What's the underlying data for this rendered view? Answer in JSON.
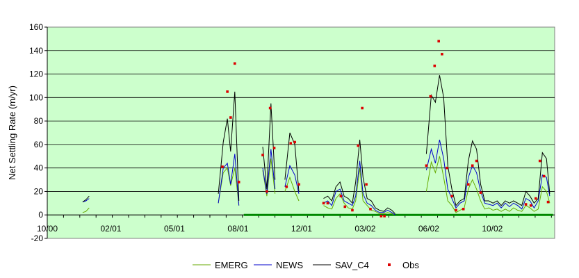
{
  "chart_data": {
    "type": "line",
    "title": "",
    "ylabel": "Net Settling Rate (m/yr)",
    "xlabel": "",
    "ylim": [
      -20,
      160
    ],
    "y_ticks": [
      -20,
      0,
      20,
      40,
      60,
      80,
      100,
      120,
      140,
      160
    ],
    "x_tick_labels": [
      "10/00",
      "02/01",
      "05/01",
      "08/01",
      "12/01",
      "03/02",
      "06/02",
      "10/02"
    ],
    "grid": "horizontal",
    "legend_position": "bottom",
    "plot_background": "#ccffcc",
    "series": [
      {
        "name": "EMERG",
        "color": "#66aa00",
        "style": "line",
        "segments": [
          [
            [
              4.3,
              2
            ],
            [
              4.7,
              3
            ],
            [
              5.1,
              6
            ]
          ],
          [
            [
              20.8,
              10
            ],
            [
              21.4,
              36
            ],
            [
              21.9,
              40
            ],
            [
              22.3,
              25
            ],
            [
              22.8,
              40
            ],
            [
              23.3,
              8
            ]
          ],
          [
            [
              26.2,
              38
            ],
            [
              26.7,
              16
            ],
            [
              27.2,
              48
            ],
            [
              27.7,
              18
            ]
          ],
          [
            [
              28.9,
              20
            ],
            [
              29.5,
              32
            ],
            [
              30.1,
              20
            ],
            [
              30.6,
              12
            ]
          ],
          [
            [
              33.6,
              8
            ],
            [
              34.1,
              6
            ],
            [
              34.6,
              5
            ],
            [
              35.1,
              14
            ],
            [
              35.6,
              18
            ],
            [
              36.1,
              10
            ],
            [
              36.6,
              6
            ],
            [
              37.1,
              5
            ],
            [
              37.5,
              12
            ],
            [
              38.0,
              40
            ],
            [
              38.4,
              12
            ],
            [
              38.9,
              8
            ],
            [
              39.4,
              4
            ],
            [
              39.9,
              3
            ],
            [
              40.4,
              1
            ],
            [
              40.9,
              1
            ],
            [
              41.4,
              2
            ],
            [
              41.9,
              1
            ],
            [
              42.3,
              0
            ]
          ],
          [
            [
              46.1,
              20
            ],
            [
              46.7,
              45
            ],
            [
              47.2,
              36
            ],
            [
              47.7,
              50
            ],
            [
              48.2,
              32
            ],
            [
              48.7,
              12
            ],
            [
              49.2,
              8
            ],
            [
              49.7,
              2
            ],
            [
              50.2,
              4
            ],
            [
              50.7,
              6
            ],
            [
              51.2,
              22
            ],
            [
              51.7,
              30
            ],
            [
              52.2,
              22
            ],
            [
              52.7,
              12
            ],
            [
              53.2,
              5
            ],
            [
              53.7,
              6
            ],
            [
              54.2,
              4
            ],
            [
              54.7,
              5
            ],
            [
              55.2,
              3
            ],
            [
              55.7,
              5
            ],
            [
              56.2,
              3
            ],
            [
              56.7,
              6
            ],
            [
              57.2,
              4
            ],
            [
              57.7,
              3
            ],
            [
              58.2,
              8
            ],
            [
              58.7,
              6
            ],
            [
              59.2,
              3
            ],
            [
              59.7,
              5
            ],
            [
              60.2,
              24
            ],
            [
              60.7,
              20
            ],
            [
              61.1,
              10
            ]
          ]
        ]
      },
      {
        "name": "NEWS",
        "color": "#0000cc",
        "style": "line",
        "segments": [
          [
            [
              4.3,
              11
            ],
            [
              4.7,
              12
            ],
            [
              5.1,
              14
            ]
          ],
          [
            [
              20.8,
              10
            ],
            [
              21.4,
              40
            ],
            [
              21.9,
              44
            ],
            [
              22.3,
              26
            ],
            [
              22.8,
              52
            ],
            [
              23.3,
              8
            ]
          ],
          [
            [
              26.2,
              40
            ],
            [
              26.7,
              18
            ],
            [
              27.2,
              56
            ],
            [
              27.7,
              22
            ]
          ],
          [
            [
              28.9,
              24
            ],
            [
              29.5,
              42
            ],
            [
              30.1,
              34
            ],
            [
              30.6,
              18
            ]
          ],
          [
            [
              33.6,
              10
            ],
            [
              34.1,
              12
            ],
            [
              34.6,
              8
            ],
            [
              35.1,
              20
            ],
            [
              35.6,
              22
            ],
            [
              36.1,
              12
            ],
            [
              36.6,
              10
            ],
            [
              37.1,
              8
            ],
            [
              37.5,
              16
            ],
            [
              38.0,
              46
            ],
            [
              38.4,
              18
            ],
            [
              38.9,
              10
            ],
            [
              39.4,
              8
            ],
            [
              39.9,
              4
            ],
            [
              40.4,
              2
            ],
            [
              40.9,
              2
            ],
            [
              41.4,
              4
            ],
            [
              41.9,
              2
            ],
            [
              42.3,
              0
            ]
          ],
          [
            [
              46.1,
              38
            ],
            [
              46.7,
              56
            ],
            [
              47.2,
              44
            ],
            [
              47.7,
              64
            ],
            [
              48.2,
              48
            ],
            [
              48.7,
              22
            ],
            [
              49.2,
              14
            ],
            [
              49.7,
              6
            ],
            [
              50.2,
              10
            ],
            [
              50.7,
              12
            ],
            [
              51.2,
              32
            ],
            [
              51.7,
              42
            ],
            [
              52.2,
              36
            ],
            [
              52.7,
              20
            ],
            [
              53.2,
              10
            ],
            [
              53.7,
              9
            ],
            [
              54.2,
              8
            ],
            [
              54.7,
              10
            ],
            [
              55.2,
              6
            ],
            [
              55.7,
              10
            ],
            [
              56.2,
              7
            ],
            [
              56.7,
              10
            ],
            [
              57.2,
              8
            ],
            [
              57.7,
              5
            ],
            [
              58.2,
              14
            ],
            [
              58.7,
              12
            ],
            [
              59.2,
              6
            ],
            [
              59.7,
              12
            ],
            [
              60.2,
              34
            ],
            [
              60.7,
              32
            ],
            [
              61.1,
              16
            ]
          ]
        ]
      },
      {
        "name": "SAV_C4",
        "color": "#000000",
        "style": "line",
        "segments": [
          [
            [
              4.3,
              11
            ],
            [
              4.7,
              13
            ],
            [
              5.1,
              16
            ]
          ],
          [
            [
              20.8,
              18
            ],
            [
              21.4,
              62
            ],
            [
              21.9,
              82
            ],
            [
              22.3,
              54
            ],
            [
              22.8,
              105
            ],
            [
              23.3,
              12
            ]
          ],
          [
            [
              26.2,
              58
            ],
            [
              26.7,
              22
            ],
            [
              27.2,
              95
            ],
            [
              27.7,
              30
            ]
          ],
          [
            [
              28.9,
              30
            ],
            [
              29.5,
              70
            ],
            [
              30.1,
              60
            ],
            [
              30.6,
              20
            ]
          ],
          [
            [
              33.6,
              14
            ],
            [
              34.1,
              16
            ],
            [
              34.6,
              12
            ],
            [
              35.1,
              24
            ],
            [
              35.6,
              28
            ],
            [
              36.1,
              16
            ],
            [
              36.6,
              14
            ],
            [
              37.1,
              10
            ],
            [
              37.5,
              28
            ],
            [
              38.0,
              64
            ],
            [
              38.4,
              32
            ],
            [
              38.9,
              14
            ],
            [
              39.4,
              12
            ],
            [
              39.9,
              6
            ],
            [
              40.4,
              4
            ],
            [
              40.9,
              3
            ],
            [
              41.4,
              6
            ],
            [
              41.9,
              4
            ],
            [
              42.3,
              1
            ]
          ],
          [
            [
              46.1,
              52
            ],
            [
              46.7,
              102
            ],
            [
              47.2,
              96
            ],
            [
              47.7,
              119
            ],
            [
              48.2,
              100
            ],
            [
              48.7,
              42
            ],
            [
              49.2,
              22
            ],
            [
              49.7,
              8
            ],
            [
              50.2,
              12
            ],
            [
              50.7,
              14
            ],
            [
              51.2,
              46
            ],
            [
              51.7,
              63
            ],
            [
              52.2,
              56
            ],
            [
              52.7,
              26
            ],
            [
              53.2,
              12
            ],
            [
              53.7,
              12
            ],
            [
              54.2,
              10
            ],
            [
              54.7,
              12
            ],
            [
              55.2,
              8
            ],
            [
              55.7,
              12
            ],
            [
              56.2,
              10
            ],
            [
              56.7,
              12
            ],
            [
              57.2,
              10
            ],
            [
              57.7,
              8
            ],
            [
              58.2,
              20
            ],
            [
              58.7,
              16
            ],
            [
              59.2,
              10
            ],
            [
              59.7,
              14
            ],
            [
              60.2,
              53
            ],
            [
              60.7,
              48
            ],
            [
              61.1,
              18
            ]
          ]
        ]
      },
      {
        "name": "Obs",
        "color": "#dd0000",
        "style": "markers",
        "points": [
          [
            21.3,
            41
          ],
          [
            21.9,
            105
          ],
          [
            22.3,
            83
          ],
          [
            22.8,
            129
          ],
          [
            23.3,
            28
          ],
          [
            26.2,
            51
          ],
          [
            26.7,
            20
          ],
          [
            27.1,
            91
          ],
          [
            27.6,
            57
          ],
          [
            29.1,
            24
          ],
          [
            29.6,
            61
          ],
          [
            30.1,
            62
          ],
          [
            30.6,
            26
          ],
          [
            33.6,
            10
          ],
          [
            34.1,
            10
          ],
          [
            35.7,
            16
          ],
          [
            36.2,
            7
          ],
          [
            37.1,
            4
          ],
          [
            37.8,
            59
          ],
          [
            38.3,
            91
          ],
          [
            38.8,
            26
          ],
          [
            39.3,
            5
          ],
          [
            40.6,
            -1
          ],
          [
            41.0,
            -1
          ],
          [
            46.1,
            42
          ],
          [
            46.6,
            101
          ],
          [
            47.1,
            127
          ],
          [
            47.6,
            148
          ],
          [
            48.0,
            137
          ],
          [
            48.6,
            40
          ],
          [
            49.2,
            16
          ],
          [
            49.7,
            4
          ],
          [
            50.6,
            5
          ],
          [
            51.2,
            26
          ],
          [
            51.7,
            42
          ],
          [
            52.2,
            46
          ],
          [
            52.7,
            19
          ],
          [
            58.2,
            9
          ],
          [
            58.8,
            8
          ],
          [
            59.4,
            14
          ],
          [
            59.9,
            46
          ],
          [
            60.4,
            33
          ],
          [
            60.9,
            11
          ]
        ]
      }
    ],
    "overlay": {
      "name": "zero-bar",
      "color": "#008800",
      "x_start": 23.9,
      "x_end": 61.5,
      "y": 0
    },
    "legend": [
      {
        "label": "EMERG",
        "color": "#66aa00",
        "kind": "line"
      },
      {
        "label": "NEWS",
        "color": "#0000cc",
        "kind": "line"
      },
      {
        "label": "SAV_C4",
        "color": "#000000",
        "kind": "line"
      },
      {
        "label": "Obs",
        "color": "#dd0000",
        "kind": "marker"
      }
    ]
  }
}
